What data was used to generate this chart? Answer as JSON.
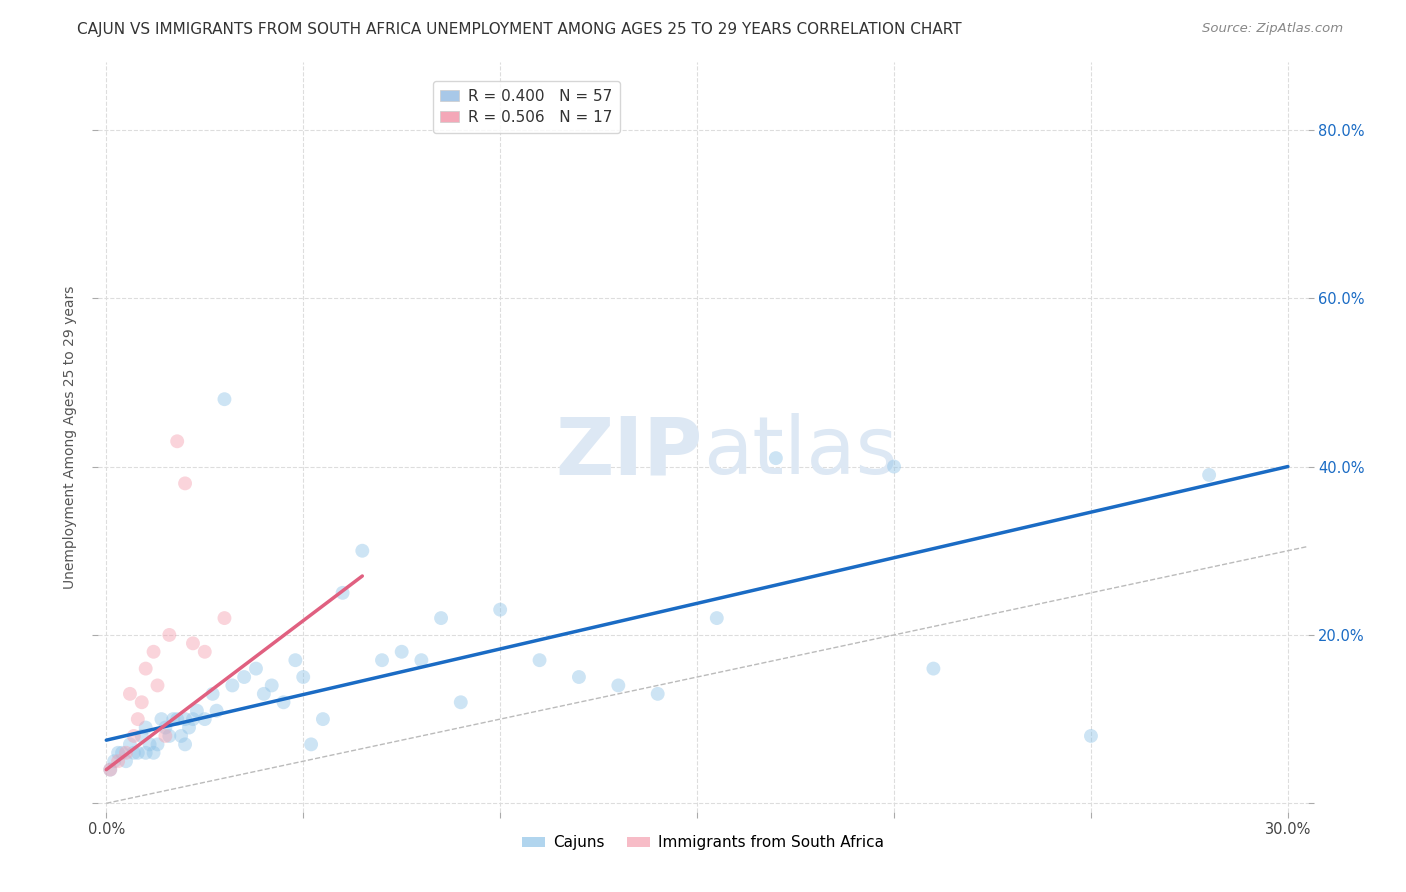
{
  "title": "CAJUN VS IMMIGRANTS FROM SOUTH AFRICA UNEMPLOYMENT AMONG AGES 25 TO 29 YEARS CORRELATION CHART",
  "source": "Source: ZipAtlas.com",
  "ylabel": "Unemployment Among Ages 25 to 29 years",
  "xlim": [
    -0.002,
    0.305
  ],
  "ylim": [
    -0.01,
    0.88
  ],
  "xticks": [
    0.0,
    0.3
  ],
  "xticklabels": [
    "0.0%",
    "30.0%"
  ],
  "yticks": [
    0.0,
    0.2,
    0.4,
    0.6,
    0.8
  ],
  "yticklabels": [
    "",
    "20.0%",
    "40.0%",
    "60.0%",
    "80.0%"
  ],
  "legend1_label": "R = 0.400   N = 57",
  "legend2_label": "R = 0.506   N = 17",
  "legend_color1": "#a8c8e8",
  "legend_color2": "#f4a8b8",
  "cajun_color": "#90C4E8",
  "sa_color": "#F4A0B0",
  "cajun_line_color": "#1A6BC4",
  "sa_line_color": "#E06080",
  "diag_line_color": "#BBBBBB",
  "watermark_color": "#DDE8F4",
  "background_color": "#FFFFFF",
  "grid_color": "#DDDDDD",
  "cajun_scatter_x": [
    0.001,
    0.002,
    0.003,
    0.004,
    0.005,
    0.006,
    0.007,
    0.008,
    0.009,
    0.01,
    0.01,
    0.011,
    0.012,
    0.013,
    0.014,
    0.015,
    0.016,
    0.017,
    0.018,
    0.019,
    0.02,
    0.02,
    0.021,
    0.022,
    0.023,
    0.025,
    0.027,
    0.028,
    0.03,
    0.032,
    0.035,
    0.038,
    0.04,
    0.042,
    0.045,
    0.048,
    0.05,
    0.052,
    0.055,
    0.06,
    0.065,
    0.07,
    0.075,
    0.08,
    0.085,
    0.09,
    0.1,
    0.11,
    0.12,
    0.13,
    0.14,
    0.155,
    0.17,
    0.2,
    0.21,
    0.25,
    0.28
  ],
  "cajun_scatter_y": [
    0.04,
    0.05,
    0.06,
    0.06,
    0.05,
    0.07,
    0.06,
    0.06,
    0.08,
    0.06,
    0.09,
    0.07,
    0.06,
    0.07,
    0.1,
    0.09,
    0.08,
    0.1,
    0.1,
    0.08,
    0.07,
    0.1,
    0.09,
    0.1,
    0.11,
    0.1,
    0.13,
    0.11,
    0.48,
    0.14,
    0.15,
    0.16,
    0.13,
    0.14,
    0.12,
    0.17,
    0.15,
    0.07,
    0.1,
    0.25,
    0.3,
    0.17,
    0.18,
    0.17,
    0.22,
    0.12,
    0.23,
    0.17,
    0.15,
    0.14,
    0.13,
    0.22,
    0.41,
    0.4,
    0.16,
    0.08,
    0.39
  ],
  "sa_scatter_x": [
    0.001,
    0.003,
    0.005,
    0.006,
    0.007,
    0.008,
    0.009,
    0.01,
    0.012,
    0.013,
    0.015,
    0.016,
    0.018,
    0.02,
    0.022,
    0.025,
    0.03
  ],
  "sa_scatter_y": [
    0.04,
    0.05,
    0.06,
    0.13,
    0.08,
    0.1,
    0.12,
    0.16,
    0.18,
    0.14,
    0.08,
    0.2,
    0.43,
    0.38,
    0.19,
    0.18,
    0.22
  ],
  "cajun_line_x0": 0.0,
  "cajun_line_x1": 0.3,
  "cajun_line_y0": 0.075,
  "cajun_line_y1": 0.4,
  "sa_line_x0": 0.0,
  "sa_line_x1": 0.065,
  "sa_line_y0": 0.04,
  "sa_line_y1": 0.27,
  "marker_size": 100,
  "marker_alpha": 0.45,
  "title_fontsize": 11,
  "source_fontsize": 9.5,
  "axis_label_fontsize": 10,
  "tick_fontsize": 10.5,
  "legend_fontsize": 11
}
